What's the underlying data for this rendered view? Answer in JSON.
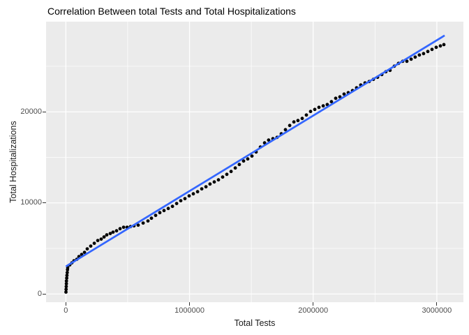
{
  "chart_data": {
    "type": "scatter",
    "title": "Correlation Between total Tests and Total Hospitalizations",
    "xlabel": "Total Tests",
    "ylabel": "Total Hospitalizations",
    "x_ticks": [
      0,
      1000000,
      2000000,
      3000000
    ],
    "x_tick_labels": [
      "0",
      "1000000",
      "2000000",
      "3000000"
    ],
    "y_ticks": [
      0,
      10000,
      20000
    ],
    "y_tick_labels": [
      "0",
      "10000",
      "20000"
    ],
    "x_minor_gridlines": [
      500000,
      1500000,
      2500000
    ],
    "y_minor_gridlines": [
      5000,
      15000,
      25000
    ],
    "xlim": [
      -160000,
      3215000
    ],
    "ylim": [
      -900,
      29900
    ],
    "grid": true,
    "legend": "none",
    "colors": {
      "panel_bg": "#EBEBEB",
      "gridline": "#FFFFFF",
      "points": "#000000",
      "trend_line": "#3366FF",
      "tick_text": "#4D4D4D",
      "title_text": "#000000"
    },
    "trend": {
      "x1": 0,
      "y1": 3020,
      "x2": 3063000,
      "y2": 28380
    },
    "points": [
      [
        1000,
        210
      ],
      [
        2000,
        510
      ],
      [
        3000,
        820
      ],
      [
        4000,
        1130
      ],
      [
        5000,
        1430
      ],
      [
        7000,
        1740
      ],
      [
        9000,
        2040
      ],
      [
        11000,
        2350
      ],
      [
        13000,
        2660
      ],
      [
        15000,
        2890
      ],
      [
        32000,
        3190
      ],
      [
        49000,
        3420
      ],
      [
        66000,
        3650
      ],
      [
        89000,
        3810
      ],
      [
        106000,
        4110
      ],
      [
        128000,
        4340
      ],
      [
        151000,
        4570
      ],
      [
        173000,
        4950
      ],
      [
        201000,
        5260
      ],
      [
        230000,
        5570
      ],
      [
        258000,
        5870
      ],
      [
        286000,
        6030
      ],
      [
        309000,
        6260
      ],
      [
        331000,
        6490
      ],
      [
        359000,
        6640
      ],
      [
        382000,
        6790
      ],
      [
        410000,
        6940
      ],
      [
        438000,
        7170
      ],
      [
        467000,
        7330
      ],
      [
        495000,
        7330
      ],
      [
        523000,
        7400
      ],
      [
        551000,
        7480
      ],
      [
        585000,
        7560
      ],
      [
        625000,
        7790
      ],
      [
        664000,
        8020
      ],
      [
        692000,
        8320
      ],
      [
        726000,
        8630
      ],
      [
        760000,
        8930
      ],
      [
        794000,
        9160
      ],
      [
        828000,
        9390
      ],
      [
        862000,
        9620
      ],
      [
        896000,
        9930
      ],
      [
        929000,
        10240
      ],
      [
        963000,
        10470
      ],
      [
        997000,
        10770
      ],
      [
        1031000,
        11000
      ],
      [
        1065000,
        11230
      ],
      [
        1099000,
        11540
      ],
      [
        1133000,
        11770
      ],
      [
        1166000,
        12070
      ],
      [
        1200000,
        12300
      ],
      [
        1234000,
        12530
      ],
      [
        1268000,
        12840
      ],
      [
        1302000,
        13140
      ],
      [
        1336000,
        13450
      ],
      [
        1370000,
        13830
      ],
      [
        1403000,
        14220
      ],
      [
        1437000,
        14600
      ],
      [
        1471000,
        14830
      ],
      [
        1505000,
        15140
      ],
      [
        1539000,
        15590
      ],
      [
        1573000,
        16130
      ],
      [
        1607000,
        16590
      ],
      [
        1640000,
        16900
      ],
      [
        1674000,
        17050
      ],
      [
        1708000,
        17200
      ],
      [
        1742000,
        17590
      ],
      [
        1776000,
        18040
      ],
      [
        1810000,
        18500
      ],
      [
        1844000,
        18890
      ],
      [
        1877000,
        19040
      ],
      [
        1911000,
        19270
      ],
      [
        1945000,
        19650
      ],
      [
        1979000,
        20040
      ],
      [
        2013000,
        20260
      ],
      [
        2047000,
        20490
      ],
      [
        2081000,
        20650
      ],
      [
        2114000,
        20800
      ],
      [
        2148000,
        21110
      ],
      [
        2182000,
        21490
      ],
      [
        2216000,
        21640
      ],
      [
        2250000,
        21950
      ],
      [
        2284000,
        22100
      ],
      [
        2318000,
        22330
      ],
      [
        2351000,
        22640
      ],
      [
        2385000,
        22940
      ],
      [
        2419000,
        23170
      ],
      [
        2453000,
        23330
      ],
      [
        2487000,
        23560
      ],
      [
        2521000,
        23790
      ],
      [
        2555000,
        24090
      ],
      [
        2588000,
        24400
      ],
      [
        2622000,
        24550
      ],
      [
        2656000,
        25010
      ],
      [
        2690000,
        25320
      ],
      [
        2724000,
        25550
      ],
      [
        2758000,
        25550
      ],
      [
        2792000,
        25780
      ],
      [
        2825000,
        26010
      ],
      [
        2859000,
        26240
      ],
      [
        2893000,
        26390
      ],
      [
        2927000,
        26620
      ],
      [
        2961000,
        26850
      ],
      [
        2995000,
        27080
      ],
      [
        3029000,
        27230
      ],
      [
        3057000,
        27380
      ]
    ]
  }
}
